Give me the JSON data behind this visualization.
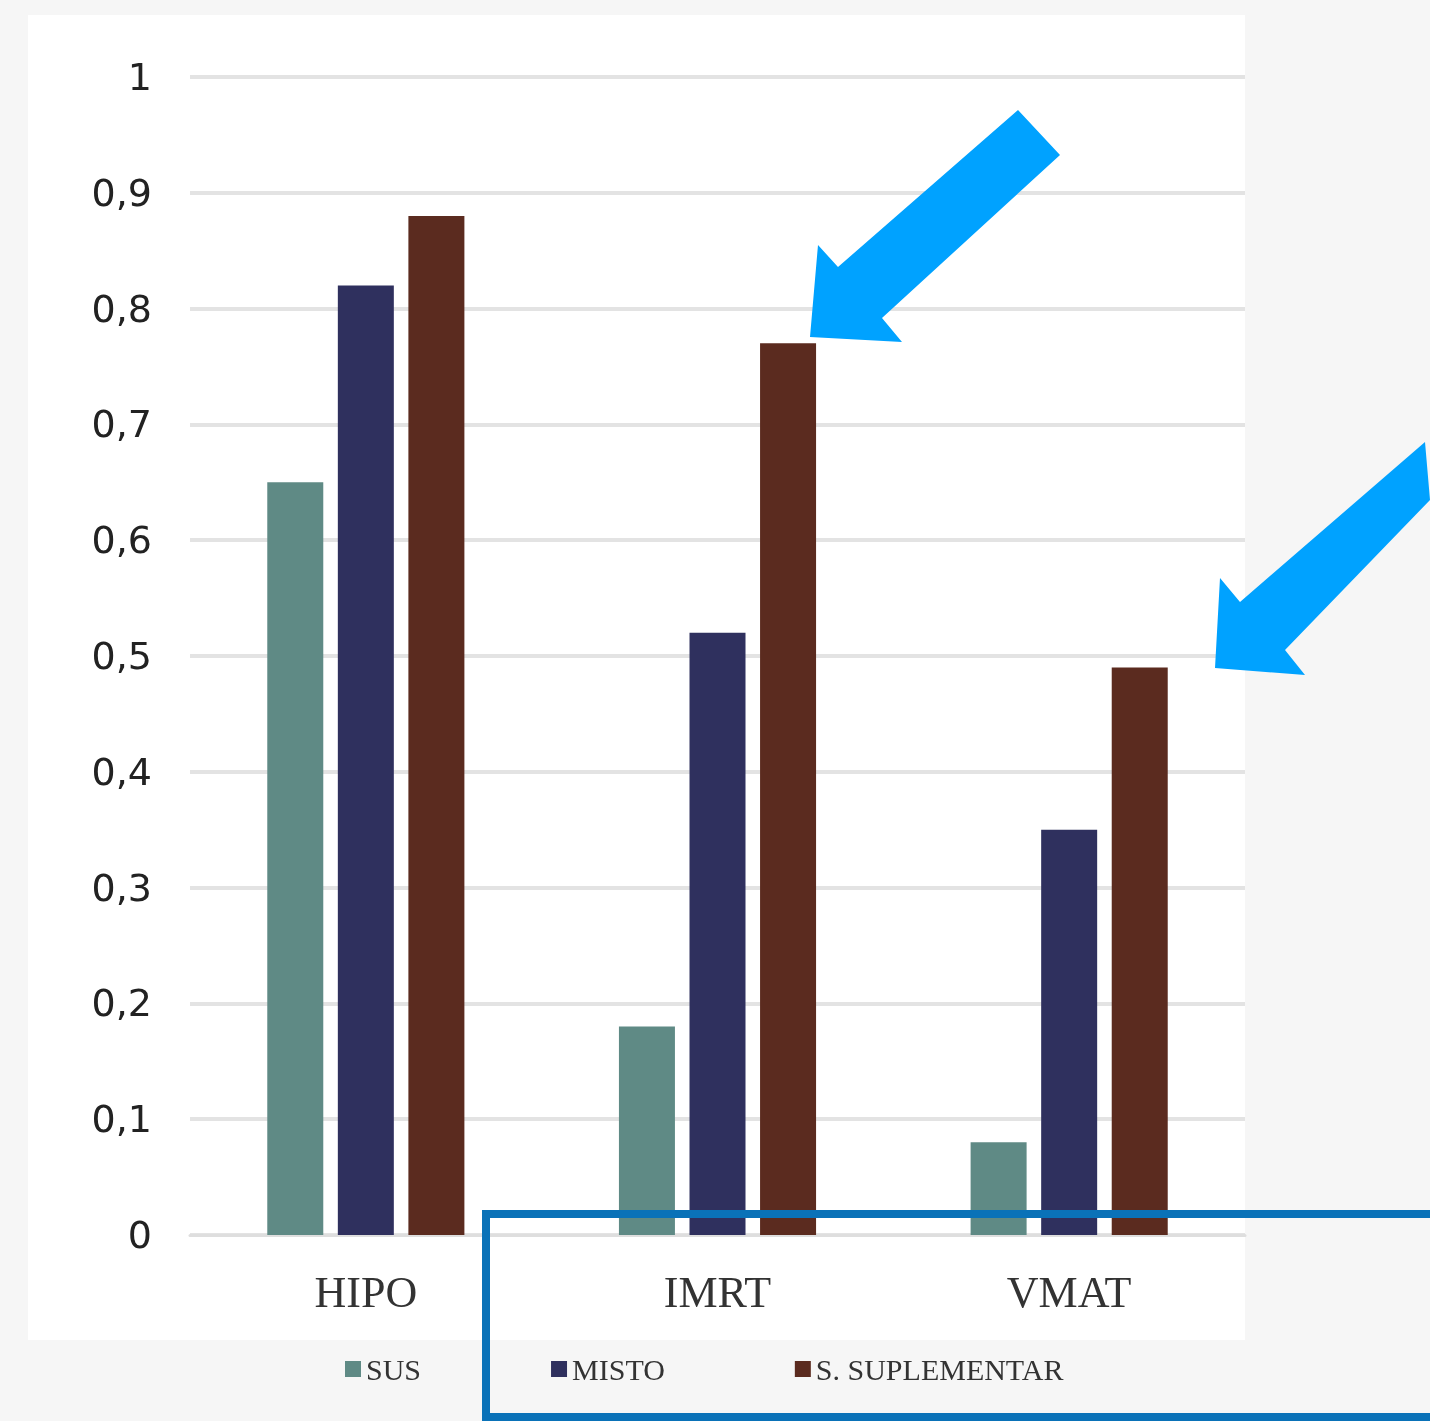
{
  "chart_data": {
    "type": "bar",
    "categories": [
      "HIPO",
      "IMRT",
      "VMAT"
    ],
    "series": [
      {
        "name": "SUS",
        "color": "#5f8a85",
        "values": [
          0.65,
          0.18,
          0.08
        ]
      },
      {
        "name": "MISTO",
        "color": "#2f305e",
        "values": [
          0.82,
          0.52,
          0.35
        ]
      },
      {
        "name": "S. SUPLEMENTAR",
        "color": "#5b2b1f",
        "values": [
          0.88,
          0.77,
          0.49
        ]
      }
    ],
    "ylim": [
      0,
      1
    ],
    "yticks": [
      0,
      {
        "value": 0.1,
        "label": "0,1"
      },
      {
        "value": 0.2,
        "label": "0,2"
      },
      {
        "value": 0.3,
        "label": "0,3"
      },
      {
        "value": 0.4,
        "label": "0,4"
      },
      {
        "value": 0.5,
        "label": "0,5"
      },
      {
        "value": 0.6,
        "label": "0,6"
      },
      {
        "value": 0.7,
        "label": "0,7"
      },
      {
        "value": 0.8,
        "label": "0,8"
      },
      {
        "value": 0.9,
        "label": "0,9"
      },
      1
    ],
    "grid": "y",
    "legend": "bottom"
  }
}
